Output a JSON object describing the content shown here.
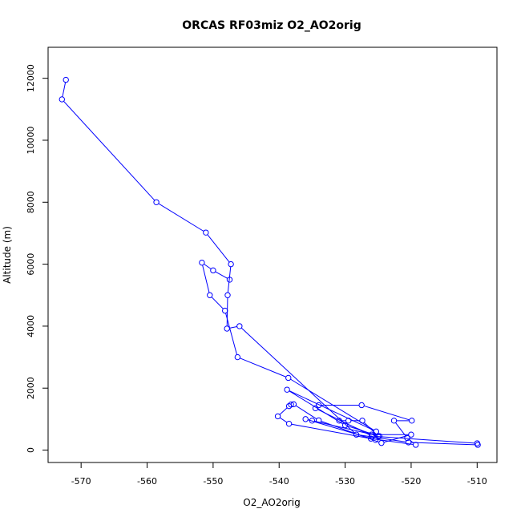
{
  "chart_data": {
    "type": "line",
    "title": "ORCAS RF03miz O2_AO2orig",
    "xlabel": "O2_AO2orig",
    "ylabel": "Altitude (m)",
    "xlim": [
      -575,
      -507
    ],
    "ylim": [
      -400,
      13000
    ],
    "xticks": [
      -570,
      -560,
      -550,
      -540,
      -530,
      -520,
      -510
    ],
    "yticks": [
      0,
      2000,
      4000,
      6000,
      8000,
      10000,
      12000
    ],
    "grid": false,
    "series": [
      {
        "color": "#0000ff",
        "marker": "open-circle",
        "points": [
          [
            -572.3,
            11950
          ],
          [
            -572.9,
            11320
          ],
          [
            -558.6,
            8000
          ],
          [
            -551.1,
            7020
          ],
          [
            -547.3,
            6000
          ],
          [
            -547.8,
            5000
          ],
          [
            -547.9,
            3920
          ],
          [
            -546.0,
            4000
          ],
          [
            -528.3,
            500
          ],
          [
            -520.4,
            250
          ],
          [
            -509.9,
            170
          ],
          [
            -510.0,
            220
          ],
          [
            -525.9,
            450
          ],
          [
            -534.5,
            1350
          ],
          [
            -534.0,
            1450
          ],
          [
            -527.5,
            1450
          ],
          [
            -519.9,
            950
          ],
          [
            -522.6,
            950
          ],
          [
            -520.6,
            390
          ],
          [
            -519.3,
            170
          ],
          [
            -526.1,
            370
          ],
          [
            -538.5,
            850
          ],
          [
            -540.2,
            1090
          ],
          [
            -538.5,
            1420
          ],
          [
            -538.2,
            1470
          ],
          [
            -537.8,
            1480
          ],
          [
            -534.0,
            960
          ],
          [
            -524.5,
            230
          ],
          [
            -520.0,
            500
          ],
          [
            -526.0,
            500
          ],
          [
            -530.9,
            950
          ],
          [
            -529.5,
            950
          ],
          [
            -527.4,
            950
          ],
          [
            -525.0,
            450
          ],
          [
            -525.4,
            330
          ],
          [
            -536.0,
            1000
          ],
          [
            -535.0,
            950
          ],
          [
            -524.8,
            450
          ],
          [
            -530.0,
            800
          ],
          [
            -538.8,
            1950
          ],
          [
            -525.3,
            600
          ],
          [
            -538.6,
            2330
          ],
          [
            -546.3,
            3000
          ],
          [
            -548.2,
            4500
          ],
          [
            -550.5,
            5000
          ],
          [
            -551.7,
            6050
          ],
          [
            -550.0,
            5800
          ],
          [
            -547.5,
            5500
          ]
        ]
      }
    ]
  }
}
